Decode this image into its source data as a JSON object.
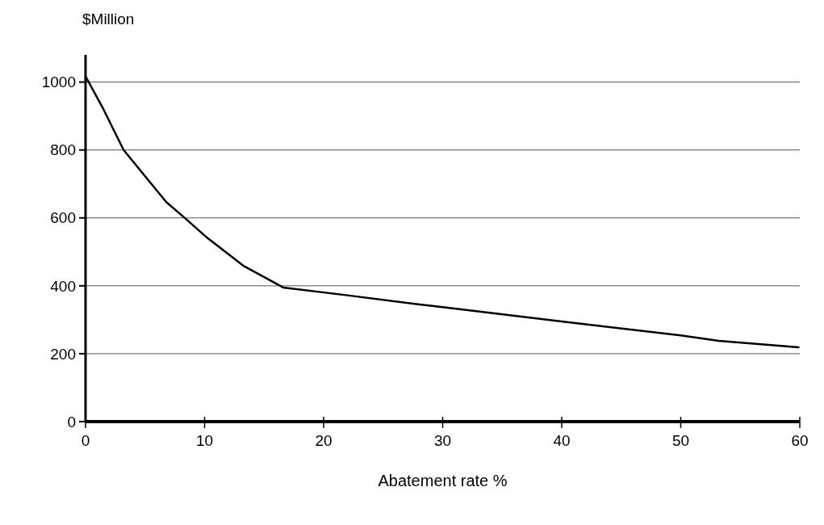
{
  "chart_data": {
    "type": "line",
    "ylabel": "$Million",
    "xlabel": "Abatement rate %",
    "x": [
      0,
      1.4,
      3.2,
      6.8,
      8.3,
      10.1,
      13.3,
      16.6,
      22,
      27.8,
      30,
      40,
      50,
      53.2,
      59.9
    ],
    "series": [
      {
        "color": "#000000",
        "values": [
          1017,
          927,
          800,
          646,
          601,
          545,
          458,
          395,
          372,
          346,
          337,
          295,
          254,
          238,
          219
        ]
      }
    ],
    "xlim": [
      0,
      60
    ],
    "xticks": [
      0,
      10,
      20,
      30,
      40,
      50,
      60
    ],
    "ylim": [
      0,
      1080
    ],
    "yticks": [
      0,
      200,
      400,
      600,
      800,
      1000
    ],
    "grid": "y",
    "marker": "none",
    "line_style": "solid"
  }
}
